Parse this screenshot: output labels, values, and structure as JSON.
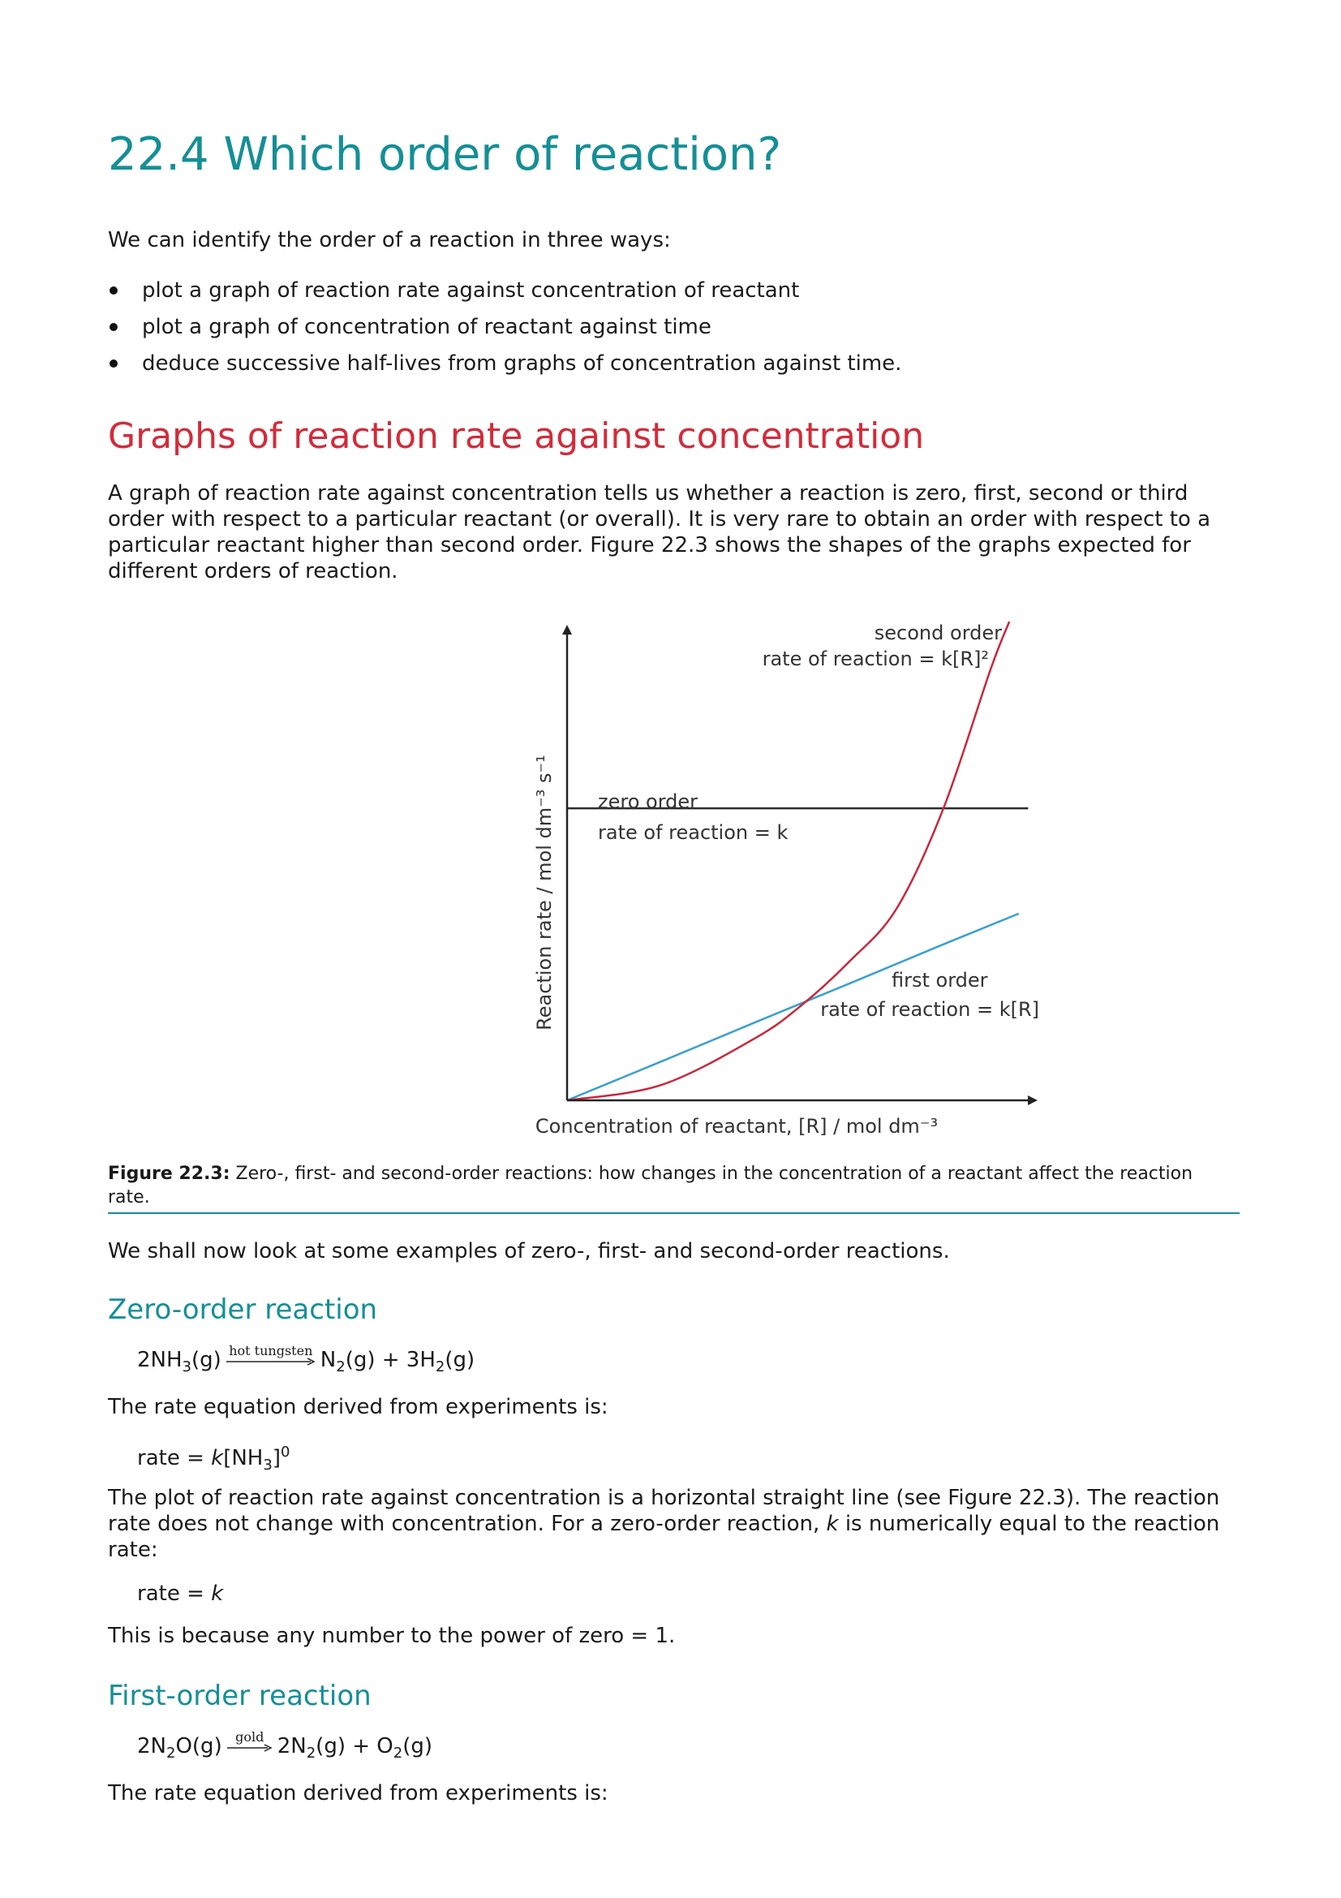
{
  "title": "22.4 Which order of reaction?",
  "intro": "We can identify the order of a reaction in three ways:",
  "bullets": [
    "plot a graph of reaction rate against concentration of reactant",
    "plot a graph of concentration of reactant against time",
    "deduce successive half-lives from graphs of concentration against time."
  ],
  "section_heading": "Graphs of reaction rate against concentration",
  "section_para": "A graph of reaction rate against concentration tells us whether a reaction is zero, first, second or third order with respect to a particular reactant (or overall). It is very rare to obtain an order with respect to a particular reactant higher than second order. Figure 22.3 shows the shapes of the graphs expected for different orders of reaction.",
  "chart_data": {
    "type": "line",
    "xlabel": "Concentration of reactant, [R] / mol dm⁻³",
    "ylabel": "Reaction rate / mol dm⁻³ s⁻¹",
    "xlim": [
      0,
      1
    ],
    "ylim": [
      0,
      1
    ],
    "series": [
      {
        "name": "zero order",
        "label_line1": "zero order",
        "label_line2": "rate of reaction = k",
        "color": "#2b2b2b",
        "x": [
          0,
          0.2,
          0.4,
          0.6,
          0.8,
          0.98
        ],
        "y": [
          0.61,
          0.61,
          0.61,
          0.61,
          0.61,
          0.61
        ]
      },
      {
        "name": "first order",
        "label_line1": "first order",
        "label_line2": "rate of reaction = k[R]",
        "color": "#3a9fd0",
        "x": [
          0,
          0.2,
          0.4,
          0.6,
          0.8,
          0.96
        ],
        "y": [
          0,
          0.081,
          0.163,
          0.244,
          0.326,
          0.39
        ]
      },
      {
        "name": "second order",
        "label_line1": "second order",
        "label_line2": "rate of reaction = k[R]²",
        "color": "#c8283c",
        "x": [
          0,
          0.2,
          0.4,
          0.5,
          0.6,
          0.7,
          0.8,
          0.9,
          0.94
        ],
        "y": [
          0,
          0.032,
          0.13,
          0.2,
          0.29,
          0.4,
          0.61,
          0.9,
          1.0
        ]
      }
    ]
  },
  "figure_caption": {
    "label": "Figure 22.3:",
    "text": " Zero-, first- and second-order reactions: how changes in the concentration of a reactant affect the reaction rate."
  },
  "examples_intro": "We shall now look at some examples of zero-, first- and second-order reactions.",
  "zero_order": {
    "heading": "Zero-order reaction",
    "equation": {
      "reactant": "2NH",
      "reactant_sub": "3",
      "reactant_state": "(g)",
      "condition": "hot tungsten",
      "product1": "N",
      "product1_sub": "2",
      "product1_state": "(g) + 3H",
      "product2_sub": "2",
      "product2_state": "(g)"
    },
    "rate_intro": "The rate equation derived from experiments is:",
    "rate_eq": {
      "prefix": "rate = ",
      "k": "k",
      "bracket": "[NH",
      "sub": "3",
      "close": "]",
      "sup": "0"
    },
    "explanation": {
      "part1": "The plot of reaction rate against concentration is a horizontal straight line (see Figure 22.3). The reaction rate does not change with concentration. For a zero-order reaction, ",
      "k": "k",
      "part2": " is numerically equal to the reaction rate:"
    },
    "rate_k": {
      "prefix": "rate = ",
      "k": "k"
    },
    "power_note": "This is because any number to the power of zero = 1."
  },
  "first_order": {
    "heading": "First-order reaction",
    "equation": {
      "reactant": "2N",
      "reactant_sub": "2",
      "reactant_state": "O(g)",
      "condition": "gold",
      "product1": "2N",
      "product1_sub": "2",
      "product1_state": "(g) + O",
      "product2_sub": "2",
      "product2_state": "(g)"
    },
    "rate_intro": "The rate equation derived from experiments is:"
  }
}
